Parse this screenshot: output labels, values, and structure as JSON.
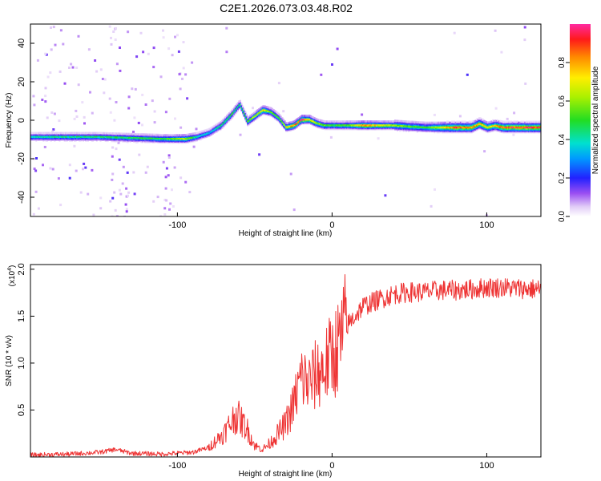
{
  "title": "C2E1.2026.073.03.48.R02",
  "chart_data": [
    {
      "type": "heatmap",
      "name": "spectrogram",
      "xlabel": "Height of straight line (km)",
      "ylabel": "Frequency (Hz)",
      "xlim": [
        -195,
        135
      ],
      "ylim": [
        -50,
        50
      ],
      "xticks": [
        -100,
        0,
        100
      ],
      "yticks": [
        -40,
        -20,
        0,
        20,
        40
      ],
      "colorbar": {
        "label": "Normalized spectral amplitude",
        "range": [
          0,
          1
        ],
        "ticks": [
          "0.0",
          "0.2",
          "0.4",
          "0.6",
          "0.8"
        ],
        "tick_values": [
          0,
          0.2,
          0.4,
          0.6,
          0.8
        ]
      },
      "ridge": {
        "height_km": [
          -195,
          -150,
          -110,
          -95,
          -88,
          -80,
          -72,
          -65,
          -60,
          -55,
          -50,
          -45,
          -40,
          -35,
          -30,
          -25,
          -20,
          -15,
          -10,
          -5,
          0,
          10,
          20,
          40,
          60,
          80,
          90,
          95,
          100,
          105,
          110,
          120,
          135
        ],
        "frequency_hz": [
          -8,
          -8,
          -9,
          -9,
          -8,
          -6,
          -2,
          4,
          9,
          0,
          3,
          6,
          5,
          2,
          -3,
          -2,
          1,
          1,
          -1,
          -2,
          -2,
          -2,
          -2,
          -2,
          -3,
          -3,
          -3,
          -1,
          -3,
          -2,
          -3,
          -3,
          -3
        ],
        "amplitude": [
          0.4,
          0.45,
          0.5,
          0.65,
          0.4,
          0.35,
          0.45,
          0.5,
          0.45,
          0.55,
          0.65,
          0.75,
          0.55,
          0.5,
          0.7,
          0.85,
          0.95,
          0.75,
          0.6,
          0.55,
          0.5,
          0.55,
          0.85,
          0.6,
          0.5,
          0.9,
          0.85,
          0.8,
          0.7,
          0.75,
          0.9,
          0.95,
          0.95
        ]
      }
    },
    {
      "type": "line",
      "name": "snr",
      "xlabel": "Height of straight line (km)",
      "ylabel": "SNR (10 * v/v)",
      "scale_label": "(x10",
      "scale_exp": "4",
      "xlim": [
        -195,
        135
      ],
      "ylim": [
        0,
        2.05
      ],
      "xticks": [
        -100,
        0,
        100
      ],
      "yticks": [
        0.5,
        1.0,
        1.5,
        2.0
      ],
      "ytick_labels": [
        "0.5",
        "1.0",
        "1.5",
        "2.0"
      ],
      "color": "#ee3333",
      "series": [
        {
          "name": "SNR (x10^4)",
          "x": [
            -195,
            -170,
            -150,
            -140,
            -130,
            -110,
            -90,
            -80,
            -70,
            -62,
            -55,
            -50,
            -45,
            -40,
            -35,
            -30,
            -25,
            -20,
            -15,
            -10,
            -5,
            0,
            5,
            10,
            20,
            30,
            40,
            50,
            60,
            70,
            80,
            90,
            100,
            110,
            120,
            135
          ],
          "y": [
            0.02,
            0.03,
            0.05,
            0.08,
            0.04,
            0.03,
            0.05,
            0.1,
            0.25,
            0.45,
            0.3,
            0.12,
            0.08,
            0.15,
            0.25,
            0.35,
            0.55,
            0.85,
            0.78,
            0.88,
            0.95,
            1.08,
            1.2,
            1.45,
            1.65,
            1.72,
            1.78,
            1.8,
            1.8,
            1.82,
            1.82,
            1.83,
            1.85,
            1.85,
            1.84,
            1.83
          ]
        }
      ]
    }
  ]
}
